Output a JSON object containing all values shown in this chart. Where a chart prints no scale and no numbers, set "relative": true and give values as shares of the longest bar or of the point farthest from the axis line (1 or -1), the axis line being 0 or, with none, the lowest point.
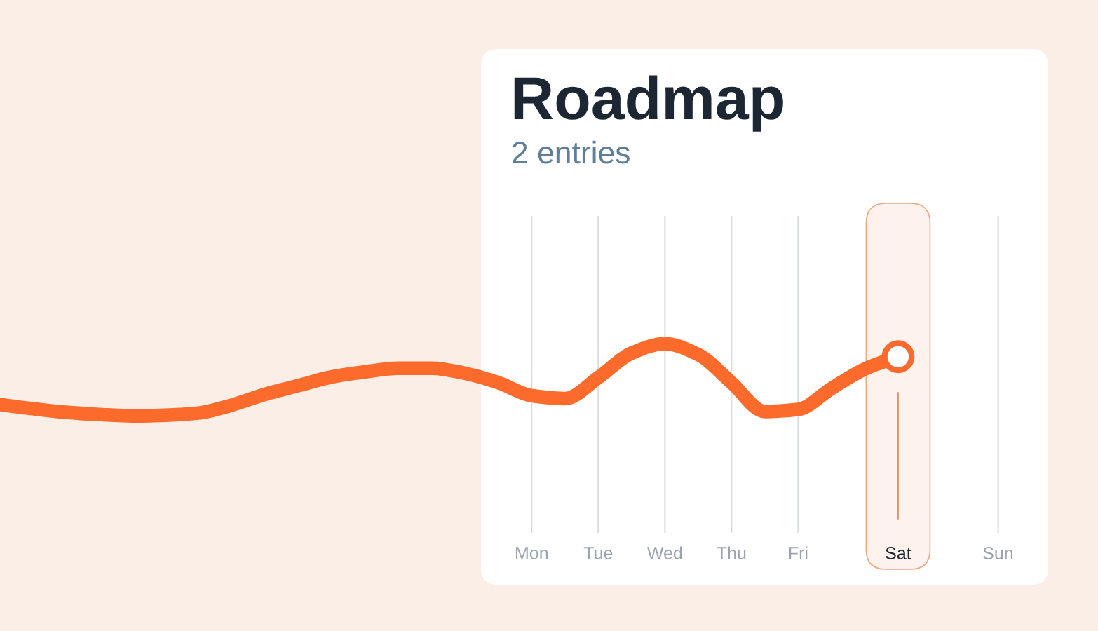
{
  "chart_data": {
    "type": "line",
    "title": "Roadmap",
    "subtitle": "2 entries",
    "relative": true,
    "grid": "x",
    "categories": [
      null,
      null,
      null,
      null,
      null,
      null,
      null,
      null,
      null,
      null,
      null,
      null,
      null,
      null,
      null,
      null,
      "Mon",
      null,
      "Tue",
      null,
      "Wed",
      null,
      "Thu",
      null,
      "Fri",
      null,
      null,
      "Sat",
      null,
      null,
      "Sun"
    ],
    "series": [
      {
        "color": "#fd6b2c",
        "values": [
          0.16,
          0.1,
          0.05,
          0.02,
          0,
          0.01,
          0.04,
          0.15,
          0.3,
          0.42,
          0.54,
          0.61,
          0.66,
          0.66,
          0.59,
          0.46,
          0.28,
          0.24,
          0.53,
          0.87,
          1,
          0.85,
          0.46,
          0.06,
          0.09,
          0.38,
          0.65,
          0.82,
          null,
          null,
          null
        ]
      },
      {
        "type": "scatter",
        "color": "#fb6a2e",
        "marker": "circle",
        "values": [
          null,
          null,
          null,
          null,
          null,
          null,
          null,
          null,
          null,
          null,
          null,
          null,
          null,
          null,
          null,
          null,
          null,
          null,
          null,
          null,
          null,
          null,
          null,
          null,
          null,
          null,
          null,
          0.82,
          null,
          null,
          null
        ]
      }
    ]
  }
}
